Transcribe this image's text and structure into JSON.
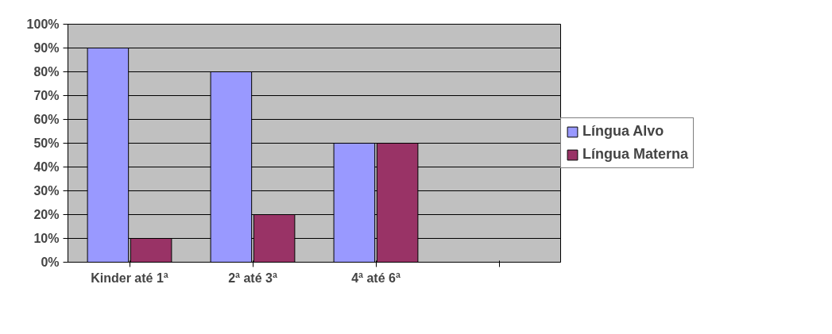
{
  "chart_data": {
    "type": "bar",
    "categories": [
      "Kinder até 1ª",
      "2ª até 3ª",
      "4ª até 6ª",
      null
    ],
    "series": [
      {
        "name": "Língua Alvo",
        "color": "#9999ff",
        "values": [
          90,
          80,
          50,
          null
        ]
      },
      {
        "name": "Língua Materna",
        "color": "#993366",
        "values": [
          10,
          20,
          50,
          null
        ]
      }
    ],
    "ylim": [
      0,
      100
    ],
    "yticks": [
      {
        "value": 0,
        "label": "0%"
      },
      {
        "value": 10,
        "label": "10%"
      },
      {
        "value": 20,
        "label": "20%"
      },
      {
        "value": 30,
        "label": "30%"
      },
      {
        "value": 40,
        "label": "40%"
      },
      {
        "value": 50,
        "label": "50%"
      },
      {
        "value": 60,
        "label": "60%"
      },
      {
        "value": 70,
        "label": "70%"
      },
      {
        "value": 80,
        "label": "80%"
      },
      {
        "value": 90,
        "label": "90%"
      },
      {
        "value": 100,
        "label": "100%"
      }
    ],
    "grid": "y",
    "legend": "right"
  }
}
